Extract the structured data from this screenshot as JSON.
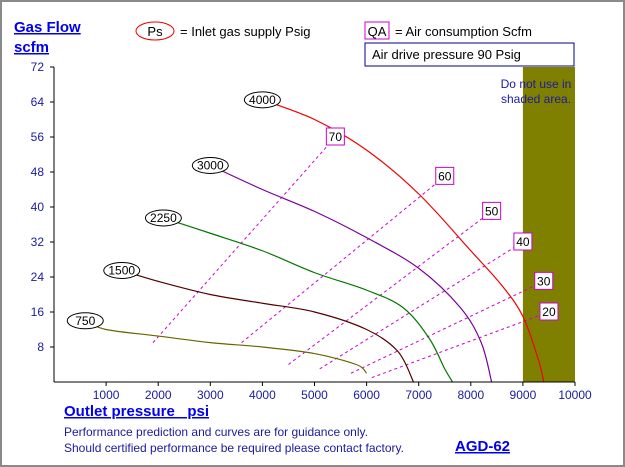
{
  "chart_data": {
    "type": "line",
    "title": "",
    "ylabel_line1": "Gas Flow",
    "ylabel_line2": "scfm",
    "xlabel": "Outlet pressure   psi",
    "xlim": [
      0,
      10000
    ],
    "ylim": [
      0,
      72
    ],
    "xticks": [
      1000,
      2000,
      3000,
      4000,
      5000,
      6000,
      7000,
      8000,
      9000,
      10000
    ],
    "yticks": [
      8,
      16,
      24,
      32,
      40,
      48,
      56,
      64,
      72
    ],
    "legend": {
      "ps_symbol": "Ps",
      "ps_text": "= Inlet gas supply  Psig",
      "qa_symbol": "QA",
      "qa_text": "= Air consumption  Scfm",
      "drive_box": "Air drive pressure  90 Psig"
    },
    "shaded_area": {
      "x_from": 9000,
      "x_to": 10000,
      "color": "#808000",
      "note_lines": [
        "Do not use in",
        "shaded area."
      ]
    },
    "series": [
      {
        "name": "4000",
        "color": "#ee0000",
        "points": [
          [
            4000,
            64.5
          ],
          [
            5000,
            60
          ],
          [
            6000,
            53
          ],
          [
            7000,
            43
          ],
          [
            8000,
            30
          ],
          [
            8600,
            22
          ],
          [
            9000,
            15
          ],
          [
            9300,
            5
          ],
          [
            9400,
            0
          ]
        ]
      },
      {
        "name": "3000",
        "color": "#7a0099",
        "points": [
          [
            3000,
            49.5
          ],
          [
            4000,
            44
          ],
          [
            5000,
            39
          ],
          [
            6000,
            33
          ],
          [
            7000,
            26
          ],
          [
            7800,
            17
          ],
          [
            8200,
            9
          ],
          [
            8400,
            0
          ]
        ]
      },
      {
        "name": "2250",
        "color": "#007700",
        "points": [
          [
            2100,
            37.5
          ],
          [
            3000,
            34
          ],
          [
            4000,
            30
          ],
          [
            5000,
            25
          ],
          [
            6000,
            21
          ],
          [
            6700,
            17
          ],
          [
            7200,
            10
          ],
          [
            7500,
            3
          ],
          [
            7650,
            0
          ]
        ]
      },
      {
        "name": "1500",
        "color": "#550000",
        "points": [
          [
            1300,
            25.5
          ],
          [
            2000,
            23
          ],
          [
            3000,
            20
          ],
          [
            4000,
            18
          ],
          [
            5000,
            16
          ],
          [
            6000,
            12
          ],
          [
            6600,
            7
          ],
          [
            6900,
            0
          ]
        ]
      },
      {
        "name": "750",
        "color": "#666600",
        "points": [
          [
            600,
            14
          ],
          [
            1000,
            12
          ],
          [
            2000,
            10.5
          ],
          [
            3000,
            9
          ],
          [
            4000,
            8
          ],
          [
            5000,
            6.5
          ],
          [
            5800,
            4
          ],
          [
            6000,
            2
          ]
        ]
      }
    ],
    "air_consumption_lines": [
      {
        "qa": "70",
        "color": "#cc00cc",
        "from": [
          1900,
          9
        ],
        "to": [
          5400,
          56
        ]
      },
      {
        "qa": "60",
        "color": "#cc00cc",
        "from": [
          3600,
          9
        ],
        "to": [
          7500,
          47
        ]
      },
      {
        "qa": "50",
        "color": "#cc00cc",
        "from": [
          4500,
          4
        ],
        "to": [
          8400,
          39
        ]
      },
      {
        "qa": "40",
        "color": "#cc00cc",
        "from": [
          5100,
          3
        ],
        "to": [
          9000,
          32
        ]
      },
      {
        "qa": "30",
        "color": "#cc00cc",
        "from": [
          5700,
          2
        ],
        "to": [
          9400,
          23
        ]
      },
      {
        "qa": "20",
        "color": "#cc00cc",
        "from": [
          6100,
          1
        ],
        "to": [
          9500,
          16
        ]
      }
    ]
  },
  "footer": {
    "note_line1": "Performance prediction and curves are for guidance only.",
    "note_line2": "Should certified performance be required please contact factory.",
    "model": "AGD-62"
  }
}
